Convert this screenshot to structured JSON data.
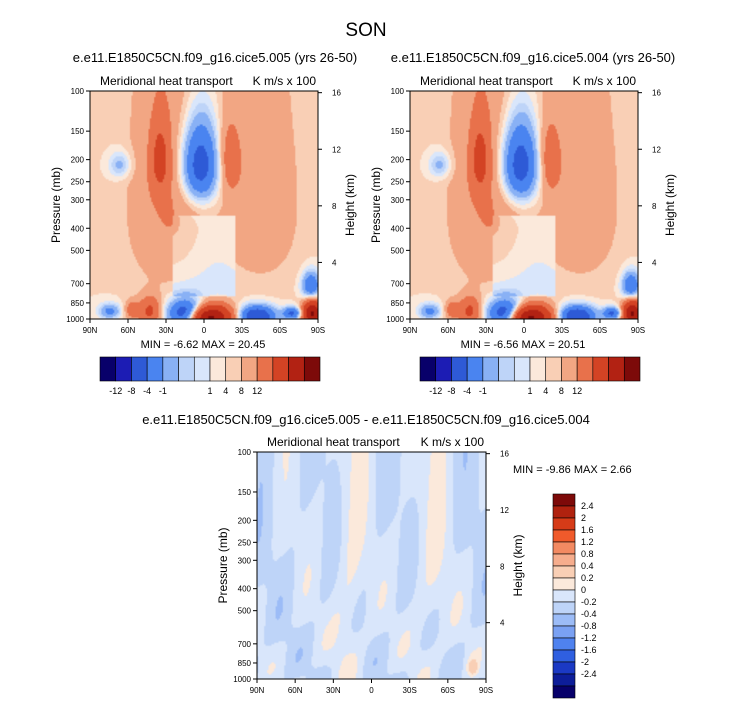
{
  "page_title": "SON",
  "panels": [
    {
      "title": "e.e11.E1850C5CN.f09_g16.cice5.005 (yrs 26-50)",
      "left_label": "Meridional heat transport",
      "right_label": "K m/s x 100",
      "stats": "MIN = -6.62  MAX = 20.45"
    },
    {
      "title": "e.e11.E1850C5CN.f09_g16.cice5.004 (yrs 26-50)",
      "left_label": "Meridional heat transport",
      "right_label": "K m/s x 100",
      "stats": "MIN = -6.56  MAX = 20.51"
    },
    {
      "title": "e.e11.E1850C5CN.f09_g16.cice5.005 - e.e11.E1850C5CN.f09_g16.cice5.004",
      "left_label": "Meridional heat transport",
      "right_label": "K m/s x 100",
      "stats": "MIN = -9.86  MAX =  2.66"
    }
  ],
  "axes": {
    "ylabel": "Pressure (mb)",
    "ylabel_right": "Height (km)"
  },
  "colors": {
    "levels_main": [
      "#08006a",
      "#1c1cb4",
      "#2e5ad6",
      "#4a84f0",
      "#89b1f5",
      "#bed4f8",
      "#d9e6fb",
      "#fbe9db",
      "#f9cfb5",
      "#f2a683",
      "#e8714b",
      "#d34324",
      "#b22213",
      "#7d0a09"
    ],
    "levels_diff": [
      "#7d0a09",
      "#b0220f",
      "#d63b18",
      "#f05a2b",
      "#f38a62",
      "#f6ad8d",
      "#f9cfb5",
      "#fbe9db",
      "#d9e6fb",
      "#bed4f8",
      "#9cbcf7",
      "#7aa1f3",
      "#4f82ef",
      "#2f5fe0",
      "#1b39c4",
      "#0d1d99",
      "#07006a"
    ]
  },
  "chart_data": [
    {
      "type": "heatmap",
      "title": "e.e11.E1850C5CN.f09_g16.cice5.005 (yrs 26-50)",
      "ylabel": "Pressure (mb)",
      "ylabel_right": "Height (km)",
      "x_ticks": [
        "90N",
        "60N",
        "30N",
        "0",
        "30S",
        "60S",
        "90S"
      ],
      "x_range": [
        90,
        -90
      ],
      "y_ticks": [
        "100",
        "150",
        "200",
        "250",
        "300",
        "400",
        "500",
        "700",
        "850",
        "1000"
      ],
      "y_range": [
        100,
        1000
      ],
      "y_scale": "log",
      "y2_ticks": [
        "16",
        "12",
        "8",
        "4"
      ],
      "colorbar_labels": [
        "-12",
        "-8",
        "-4",
        "-1",
        "1",
        "4",
        "8",
        "12"
      ],
      "min": -6.62,
      "max": 20.45
    },
    {
      "type": "heatmap",
      "title": "e.e11.E1850C5CN.f09_g16.cice5.004 (yrs 26-50)",
      "ylabel": "Pressure (mb)",
      "ylabel_right": "Height (km)",
      "x_ticks": [
        "90N",
        "60N",
        "30N",
        "0",
        "30S",
        "60S",
        "90S"
      ],
      "x_range": [
        90,
        -90
      ],
      "y_ticks": [
        "100",
        "150",
        "200",
        "250",
        "300",
        "400",
        "500",
        "700",
        "850",
        "1000"
      ],
      "y_range": [
        100,
        1000
      ],
      "y_scale": "log",
      "y2_ticks": [
        "16",
        "12",
        "8",
        "4"
      ],
      "colorbar_labels": [
        "-12",
        "-8",
        "-4",
        "-1",
        "1",
        "4",
        "8",
        "12"
      ],
      "min": -6.56,
      "max": 20.51
    },
    {
      "type": "heatmap",
      "title": "e.e11.E1850C5CN.f09_g16.cice5.005 - e.e11.E1850C5CN.f09_g16.cice5.004",
      "ylabel": "Pressure (mb)",
      "ylabel_right": "Height (km)",
      "x_ticks": [
        "90N",
        "60N",
        "30N",
        "0",
        "30S",
        "60S",
        "90S"
      ],
      "x_range": [
        90,
        -90
      ],
      "y_ticks": [
        "100",
        "150",
        "200",
        "250",
        "300",
        "400",
        "500",
        "700",
        "850",
        "1000"
      ],
      "y_range": [
        100,
        1000
      ],
      "y_scale": "log",
      "y2_ticks": [
        "16",
        "12",
        "8",
        "4"
      ],
      "colorbar_labels": [
        "2.4",
        "2",
        "1.6",
        "1.2",
        "0.8",
        "0.4",
        "0.2",
        "0",
        "-0.2",
        "-0.4",
        "-0.8",
        "-1.2",
        "-1.6",
        "-2",
        "-2.4"
      ],
      "min": -9.86,
      "max": 2.66
    }
  ]
}
